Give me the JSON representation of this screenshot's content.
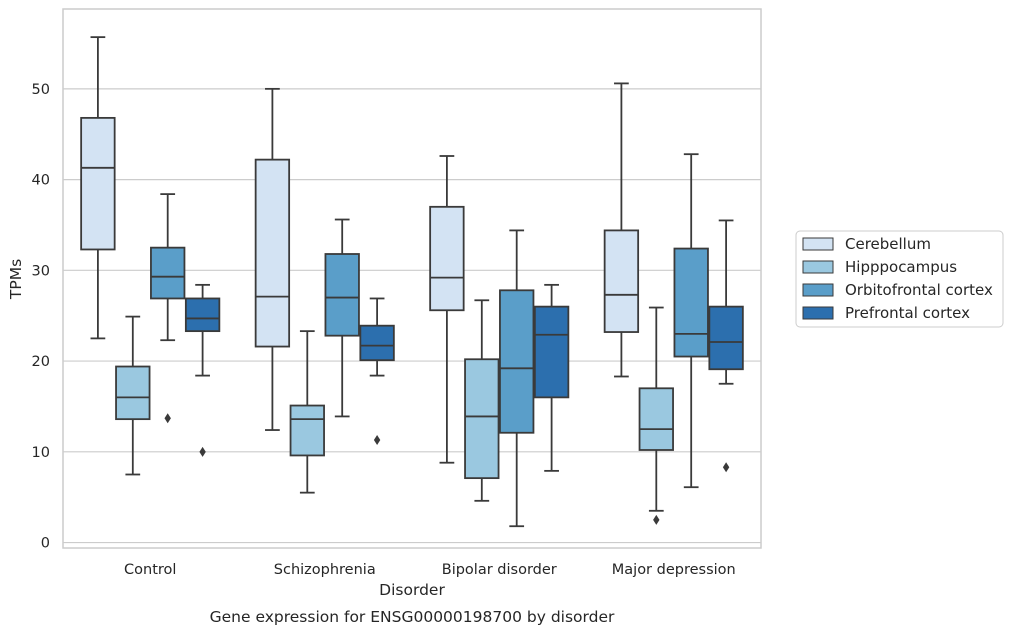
{
  "chart_data": {
    "type": "box",
    "title": "Gene expression for ENSG00000198700 by disorder",
    "xlabel": "Disorder",
    "ylabel": "TPMs",
    "ylim": [
      -0.6,
      58.8
    ],
    "yticks": [
      0,
      10,
      20,
      30,
      40,
      50
    ],
    "grid": "horizontal",
    "legend_position": "right",
    "categories": [
      "Control",
      "Schizophrenia",
      "Bipolar disorder",
      "Major depression"
    ],
    "series": [
      {
        "name": "Cerebellum",
        "color": "#d3e3f3",
        "boxes": [
          {
            "whislo": 22.5,
            "q1": 32.3,
            "med": 41.3,
            "q3": 46.8,
            "whishi": 55.7,
            "fliers": []
          },
          {
            "whislo": 12.4,
            "q1": 21.6,
            "med": 27.1,
            "q3": 42.2,
            "whishi": 50.0,
            "fliers": []
          },
          {
            "whislo": 8.8,
            "q1": 25.6,
            "med": 29.2,
            "q3": 37.0,
            "whishi": 42.6,
            "fliers": []
          },
          {
            "whislo": 18.3,
            "q1": 23.2,
            "med": 27.3,
            "q3": 34.4,
            "whishi": 50.6,
            "fliers": []
          }
        ]
      },
      {
        "name": "Hipppocampus",
        "color": "#9ac8e0",
        "boxes": [
          {
            "whislo": 7.5,
            "q1": 13.6,
            "med": 16.0,
            "q3": 19.4,
            "whishi": 24.9,
            "fliers": []
          },
          {
            "whislo": 5.5,
            "q1": 9.6,
            "med": 13.6,
            "q3": 15.1,
            "whishi": 23.3,
            "fliers": []
          },
          {
            "whislo": 4.6,
            "q1": 7.1,
            "med": 13.9,
            "q3": 20.2,
            "whishi": 26.7,
            "fliers": []
          },
          {
            "whislo": 3.5,
            "q1": 10.2,
            "med": 12.5,
            "q3": 17.0,
            "whishi": 25.9,
            "fliers": [
              2.5
            ]
          }
        ]
      },
      {
        "name": "Orbitofrontal cortex",
        "color": "#5a9ec9",
        "boxes": [
          {
            "whislo": 22.3,
            "q1": 26.9,
            "med": 29.3,
            "q3": 32.5,
            "whishi": 38.4,
            "fliers": [
              13.7
            ]
          },
          {
            "whislo": 13.9,
            "q1": 22.8,
            "med": 27.0,
            "q3": 31.8,
            "whishi": 35.6,
            "fliers": []
          },
          {
            "whislo": 1.8,
            "q1": 12.1,
            "med": 19.2,
            "q3": 27.8,
            "whishi": 34.4,
            "fliers": []
          },
          {
            "whislo": 6.1,
            "q1": 20.5,
            "med": 23.0,
            "q3": 32.4,
            "whishi": 42.8,
            "fliers": []
          }
        ]
      },
      {
        "name": "Prefrontal cortex",
        "color": "#2c6fae",
        "boxes": [
          {
            "whislo": 18.4,
            "q1": 23.3,
            "med": 24.7,
            "q3": 26.9,
            "whishi": 28.4,
            "fliers": [
              10.0
            ]
          },
          {
            "whislo": 18.4,
            "q1": 20.1,
            "med": 21.7,
            "q3": 23.9,
            "whishi": 26.9,
            "fliers": [
              11.3
            ]
          },
          {
            "whislo": 7.9,
            "q1": 16.0,
            "med": 22.9,
            "q3": 26.0,
            "whishi": 28.4,
            "fliers": []
          },
          {
            "whislo": 17.5,
            "q1": 19.1,
            "med": 22.1,
            "q3": 26.0,
            "whishi": 35.5,
            "fliers": [
              8.3
            ]
          }
        ]
      }
    ]
  }
}
